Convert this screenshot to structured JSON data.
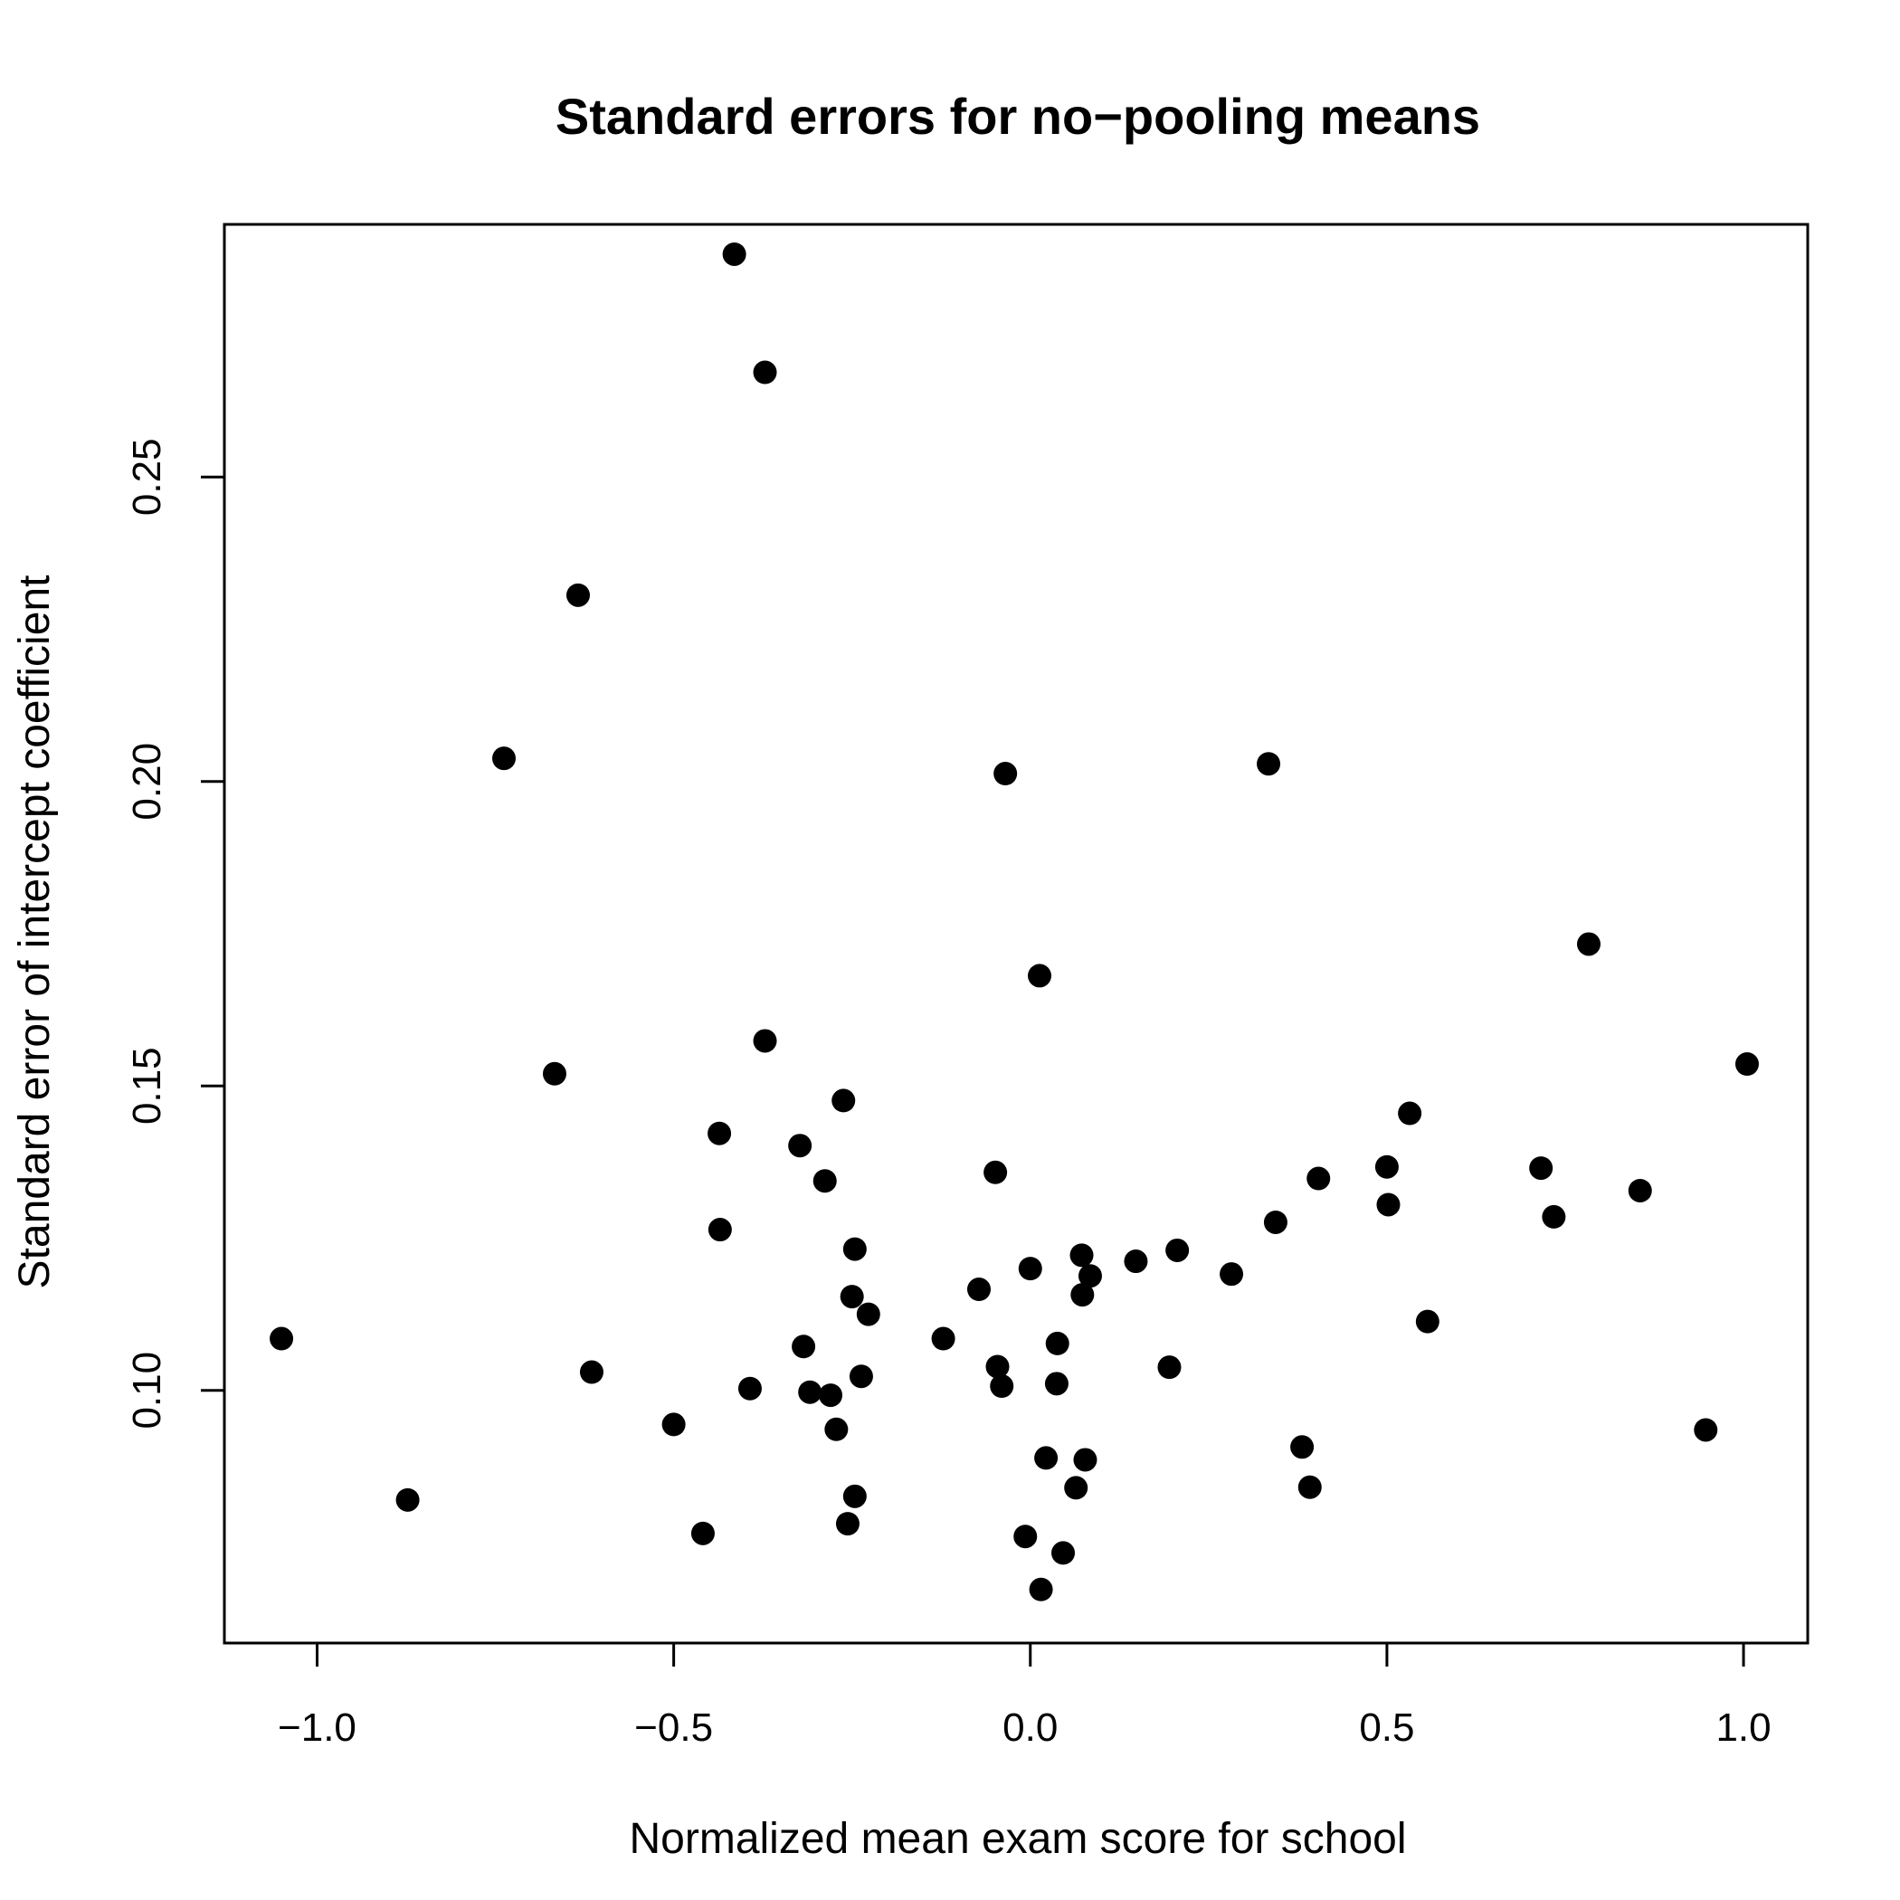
{
  "chart_data": {
    "type": "scatter",
    "title": "Standard errors for no−pooling means",
    "xlabel": "Normalized mean exam score for school",
    "ylabel": "Standard error of intercept coefficient",
    "xlim": [
      -1.13,
      1.09
    ],
    "ylim": [
      0.0585,
      0.2915
    ],
    "xticks": [
      -1.0,
      -0.5,
      0.0,
      0.5,
      1.0
    ],
    "xtick_labels": [
      "−1.0",
      "−0.5",
      "0.0",
      "0.5",
      "1.0"
    ],
    "yticks": [
      0.1,
      0.15,
      0.2,
      0.25
    ],
    "ytick_labels": [
      "0.10",
      "0.15",
      "0.20",
      "0.25"
    ],
    "grid": false,
    "marker_color": "#000000",
    "points": [
      {
        "x": -1.05,
        "y": 0.1085
      },
      {
        "x": -0.873,
        "y": 0.082
      },
      {
        "x": -0.738,
        "y": 0.2038
      },
      {
        "x": -0.667,
        "y": 0.152
      },
      {
        "x": -0.634,
        "y": 0.2306
      },
      {
        "x": -0.615,
        "y": 0.103
      },
      {
        "x": -0.5,
        "y": 0.0944
      },
      {
        "x": -0.459,
        "y": 0.0765
      },
      {
        "x": -0.436,
        "y": 0.1422
      },
      {
        "x": -0.435,
        "y": 0.1264
      },
      {
        "x": -0.415,
        "y": 0.2866
      },
      {
        "x": -0.393,
        "y": 0.1003
      },
      {
        "x": -0.372,
        "y": 0.2672
      },
      {
        "x": -0.372,
        "y": 0.1574
      },
      {
        "x": -0.323,
        "y": 0.1402
      },
      {
        "x": -0.318,
        "y": 0.1072
      },
      {
        "x": -0.309,
        "y": 0.0997
      },
      {
        "x": -0.288,
        "y": 0.1344
      },
      {
        "x": -0.28,
        "y": 0.0992
      },
      {
        "x": -0.272,
        "y": 0.0936
      },
      {
        "x": -0.262,
        "y": 0.1476
      },
      {
        "x": -0.256,
        "y": 0.0781
      },
      {
        "x": -0.25,
        "y": 0.1154
      },
      {
        "x": -0.246,
        "y": 0.1232
      },
      {
        "x": -0.246,
        "y": 0.0826
      },
      {
        "x": -0.237,
        "y": 0.1023
      },
      {
        "x": -0.227,
        "y": 0.1125
      },
      {
        "x": -0.122,
        "y": 0.1085
      },
      {
        "x": -0.072,
        "y": 0.1166
      },
      {
        "x": -0.049,
        "y": 0.1358
      },
      {
        "x": -0.046,
        "y": 0.1039
      },
      {
        "x": -0.04,
        "y": 0.1007
      },
      {
        "x": -0.035,
        "y": 0.2013
      },
      {
        "x": -0.007,
        "y": 0.076
      },
      {
        "x": 0.0,
        "y": 0.12
      },
      {
        "x": 0.013,
        "y": 0.1681
      },
      {
        "x": 0.015,
        "y": 0.0673
      },
      {
        "x": 0.022,
        "y": 0.0889
      },
      {
        "x": 0.037,
        "y": 0.1011
      },
      {
        "x": 0.038,
        "y": 0.1077
      },
      {
        "x": 0.046,
        "y": 0.0733
      },
      {
        "x": 0.064,
        "y": 0.084
      },
      {
        "x": 0.072,
        "y": 0.1222
      },
      {
        "x": 0.073,
        "y": 0.1157
      },
      {
        "x": 0.077,
        "y": 0.0886
      },
      {
        "x": 0.084,
        "y": 0.1188
      },
      {
        "x": 0.148,
        "y": 0.1212
      },
      {
        "x": 0.195,
        "y": 0.1038
      },
      {
        "x": 0.206,
        "y": 0.123
      },
      {
        "x": 0.282,
        "y": 0.1191
      },
      {
        "x": 0.334,
        "y": 0.2029
      },
      {
        "x": 0.344,
        "y": 0.1276
      },
      {
        "x": 0.381,
        "y": 0.0907
      },
      {
        "x": 0.392,
        "y": 0.0841
      },
      {
        "x": 0.404,
        "y": 0.1348
      },
      {
        "x": 0.5,
        "y": 0.1367
      },
      {
        "x": 0.502,
        "y": 0.1305
      },
      {
        "x": 0.532,
        "y": 0.1455
      },
      {
        "x": 0.557,
        "y": 0.1113
      },
      {
        "x": 0.716,
        "y": 0.1365
      },
      {
        "x": 0.734,
        "y": 0.1285
      },
      {
        "x": 0.783,
        "y": 0.1733
      },
      {
        "x": 0.855,
        "y": 0.1328
      },
      {
        "x": 0.947,
        "y": 0.0935
      },
      {
        "x": 1.005,
        "y": 0.1536
      }
    ]
  }
}
